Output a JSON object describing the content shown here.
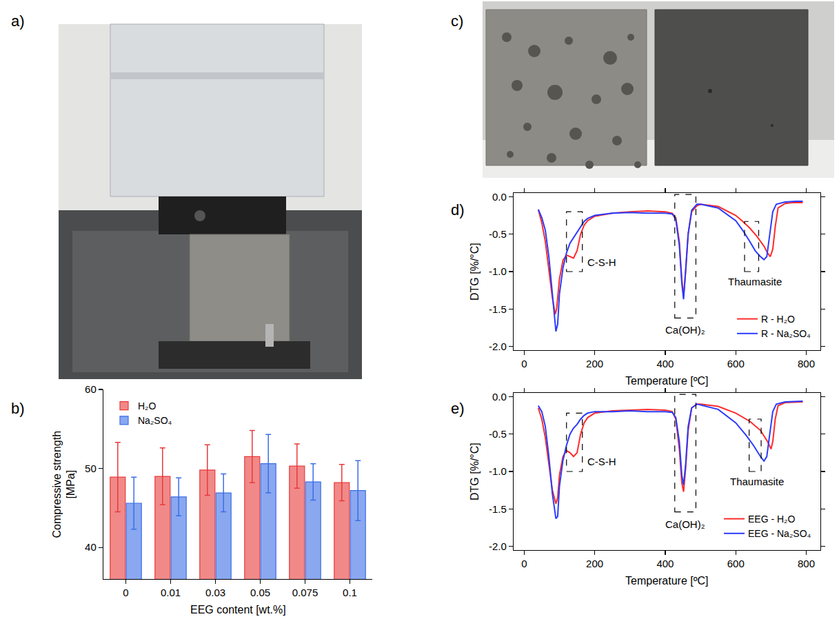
{
  "photos": [
    {
      "panel_label": "a)"
    },
    {
      "panel_label": "c)"
    }
  ],
  "chart_data": [
    {
      "panel_label": "b)",
      "type": "bar",
      "x_label": "EEG content [wt.%]",
      "y_label": "Compressive strength [MPa]",
      "categories": [
        "0",
        "0.01",
        "0.03",
        "0.05",
        "0.075",
        "0.1"
      ],
      "series": [
        {
          "name": "H₂O",
          "color": "#e83a3a",
          "values": [
            48.9,
            49.0,
            49.8,
            51.5,
            50.3,
            48.2
          ],
          "errors": [
            4.4,
            3.6,
            3.2,
            3.3,
            2.8,
            2.3
          ]
        },
        {
          "name": "Na₂SO₄",
          "color": "#3c6ee6",
          "values": [
            45.6,
            46.4,
            46.9,
            50.6,
            48.3,
            47.2
          ],
          "errors": [
            3.3,
            2.4,
            2.4,
            3.7,
            2.3,
            3.8
          ]
        }
      ],
      "ylim": [
        36,
        60
      ],
      "yticks": [
        40,
        50,
        60
      ],
      "grid": false,
      "legend": "top-left"
    },
    {
      "panel_label": "d)",
      "type": "line",
      "x_label": "Temperature [ºC]",
      "y_label": "DTG [%/°C]",
      "xlim": [
        -30,
        840
      ],
      "xticks": [
        0,
        200,
        400,
        600,
        800
      ],
      "ylim": [
        -2.05,
        0.05
      ],
      "yticks": [
        {
          "value": 0,
          "label": "0.0"
        },
        -0.5,
        {
          "value": -1,
          "label": "-1.0"
        },
        -1.5,
        {
          "value": -2,
          "label": "-2.0"
        }
      ],
      "grid": false,
      "legend": "bottom-right",
      "series": [
        {
          "name": "R - H₂O",
          "color": "#ff2b2b",
          "x": [
            40,
            50,
            60,
            70,
            80,
            88,
            92,
            100,
            110,
            120,
            130,
            140,
            150,
            160,
            170,
            180,
            200,
            250,
            300,
            350,
            400,
            420,
            430,
            440,
            447,
            452,
            458,
            465,
            475,
            490,
            500,
            550,
            600,
            620,
            640,
            660,
            680,
            690,
            698,
            705,
            712,
            720,
            740,
            760,
            790
          ],
          "values": [
            -0.17,
            -0.35,
            -0.6,
            -0.95,
            -1.35,
            -1.57,
            -1.5,
            -1.1,
            -0.85,
            -0.78,
            -0.8,
            -0.82,
            -0.72,
            -0.5,
            -0.38,
            -0.32,
            -0.26,
            -0.22,
            -0.2,
            -0.19,
            -0.2,
            -0.22,
            -0.28,
            -0.6,
            -1.1,
            -1.33,
            -1.0,
            -0.5,
            -0.2,
            -0.12,
            -0.1,
            -0.13,
            -0.25,
            -0.33,
            -0.42,
            -0.53,
            -0.66,
            -0.75,
            -0.8,
            -0.7,
            -0.4,
            -0.15,
            -0.09,
            -0.08,
            -0.08
          ]
        },
        {
          "name": "R - Na₂SO₄",
          "color": "#2b3bff",
          "x": [
            40,
            50,
            60,
            70,
            80,
            90,
            95,
            100,
            110,
            120,
            130,
            140,
            150,
            160,
            170,
            180,
            200,
            250,
            300,
            350,
            400,
            420,
            430,
            440,
            447,
            452,
            458,
            465,
            475,
            490,
            500,
            550,
            600,
            620,
            640,
            655,
            670,
            680,
            688,
            695,
            705,
            715,
            740,
            770,
            790
          ],
          "values": [
            -0.17,
            -0.28,
            -0.45,
            -0.8,
            -1.3,
            -1.8,
            -1.7,
            -1.3,
            -0.95,
            -0.75,
            -0.62,
            -0.55,
            -0.47,
            -0.4,
            -0.33,
            -0.29,
            -0.25,
            -0.22,
            -0.21,
            -0.22,
            -0.22,
            -0.23,
            -0.3,
            -0.65,
            -1.15,
            -1.37,
            -1.0,
            -0.5,
            -0.18,
            -0.1,
            -0.1,
            -0.15,
            -0.32,
            -0.45,
            -0.6,
            -0.72,
            -0.8,
            -0.84,
            -0.8,
            -0.55,
            -0.2,
            -0.1,
            -0.07,
            -0.06,
            -0.06
          ]
        }
      ],
      "annotations": [
        {
          "text": "C-S-H",
          "x": 220,
          "y": -0.88,
          "box": {
            "x": [
              120,
              165
            ],
            "y": [
              -1.0,
              -0.2
            ]
          }
        },
        {
          "text": "Ca(OH)₂",
          "x": 457,
          "y": -1.78,
          "box": {
            "x": [
              427,
              487
            ],
            "y": [
              -1.62,
              0.03
            ]
          }
        },
        {
          "text": "Thaumasite",
          "x": 655,
          "y": -1.13,
          "box": {
            "x": [
              625,
              665
            ],
            "y": [
              -1.0,
              -0.33
            ]
          }
        }
      ]
    },
    {
      "panel_label": "e)",
      "type": "line",
      "x_label": "Temperature [ºC]",
      "y_label": "DTG [%/°C]",
      "xlim": [
        -30,
        840
      ],
      "xticks": [
        0,
        200,
        400,
        600,
        800
      ],
      "ylim": [
        -2.05,
        0.05
      ],
      "yticks": [
        {
          "value": 0,
          "label": "0.0"
        },
        -0.5,
        {
          "value": -1,
          "label": "-1.0"
        },
        -1.5,
        {
          "value": -2,
          "label": "-2.0"
        }
      ],
      "grid": false,
      "legend": "bottom-right",
      "series": [
        {
          "name": "EEG - H₂O",
          "color": "#ff2b2b",
          "x": [
            40,
            50,
            60,
            70,
            80,
            90,
            95,
            100,
            110,
            120,
            130,
            140,
            150,
            160,
            170,
            180,
            200,
            250,
            300,
            350,
            400,
            420,
            430,
            440,
            447,
            452,
            458,
            465,
            475,
            490,
            500,
            550,
            600,
            640,
            670,
            690,
            700,
            705,
            712,
            720,
            740,
            790
          ],
          "values": [
            -0.15,
            -0.3,
            -0.55,
            -0.9,
            -1.25,
            -1.43,
            -1.35,
            -1.05,
            -0.8,
            -0.72,
            -0.75,
            -0.8,
            -0.75,
            -0.5,
            -0.35,
            -0.28,
            -0.22,
            -0.19,
            -0.18,
            -0.17,
            -0.18,
            -0.2,
            -0.3,
            -0.7,
            -1.15,
            -1.27,
            -0.95,
            -0.45,
            -0.15,
            -0.1,
            -0.1,
            -0.13,
            -0.22,
            -0.33,
            -0.45,
            -0.6,
            -0.7,
            -0.6,
            -0.3,
            -0.12,
            -0.08,
            -0.07
          ]
        },
        {
          "name": "EEG - Na₂SO₄",
          "color": "#2b3bff",
          "x": [
            40,
            50,
            60,
            70,
            80,
            90,
            95,
            100,
            110,
            120,
            130,
            140,
            150,
            160,
            170,
            180,
            200,
            250,
            300,
            350,
            400,
            420,
            430,
            440,
            447,
            452,
            458,
            465,
            475,
            490,
            500,
            550,
            600,
            630,
            650,
            670,
            680,
            688,
            695,
            705,
            715,
            740,
            790
          ],
          "values": [
            -0.12,
            -0.2,
            -0.4,
            -0.8,
            -1.3,
            -1.63,
            -1.6,
            -1.2,
            -0.85,
            -0.65,
            -0.5,
            -0.42,
            -0.37,
            -0.3,
            -0.25,
            -0.22,
            -0.2,
            -0.2,
            -0.19,
            -0.2,
            -0.2,
            -0.21,
            -0.28,
            -0.6,
            -1.05,
            -1.18,
            -0.9,
            -0.4,
            -0.15,
            -0.1,
            -0.11,
            -0.17,
            -0.35,
            -0.52,
            -0.65,
            -0.8,
            -0.86,
            -0.8,
            -0.55,
            -0.2,
            -0.1,
            -0.07,
            -0.06
          ]
        }
      ],
      "annotations": [
        {
          "text": "C-S-H",
          "x": 220,
          "y": -0.87,
          "box": {
            "x": [
              120,
              165
            ],
            "y": [
              -1.0,
              -0.22
            ]
          }
        },
        {
          "text": "Ca(OH)₂",
          "x": 457,
          "y": -1.7,
          "box": {
            "x": [
              427,
              487
            ],
            "y": [
              -1.54,
              0.03
            ]
          }
        },
        {
          "text": "Thaumasite",
          "x": 660,
          "y": -1.13,
          "box": {
            "x": [
              638,
              672
            ],
            "y": [
              -1.0,
              -0.3
            ]
          }
        }
      ]
    }
  ]
}
